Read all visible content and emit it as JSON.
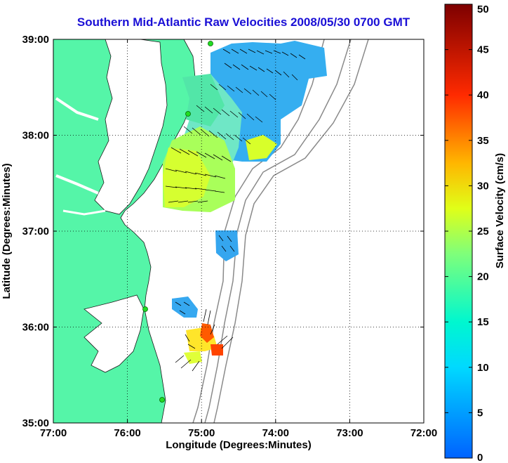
{
  "title": "Southern Mid-Atlantic Raw Velocities 2008/05/30 0700 GMT",
  "xlabel": "Longitude (Degrees:Minutes)",
  "ylabel": "Latitude (Degrees:Minutes)",
  "x_ticks": [
    "77:00",
    "76:00",
    "75:00",
    "74:00",
    "73:00",
    "72:00"
  ],
  "y_ticks": [
    "39:00",
    "38:00",
    "37:00",
    "36:00",
    "35:00"
  ],
  "colorbar": {
    "label": "Surface Velocity (cm/s)",
    "ticks": [
      "50",
      "45",
      "40",
      "35",
      "30",
      "25",
      "20",
      "15",
      "10",
      "5",
      "0"
    ],
    "range": [
      0,
      50
    ]
  },
  "colors": {
    "land": "#55f5a8",
    "coast_outline": "#1a1a1a",
    "bathymetry": "#8a8a8a",
    "site_marker": "#22dd22",
    "title": "#1a0fd6"
  }
}
